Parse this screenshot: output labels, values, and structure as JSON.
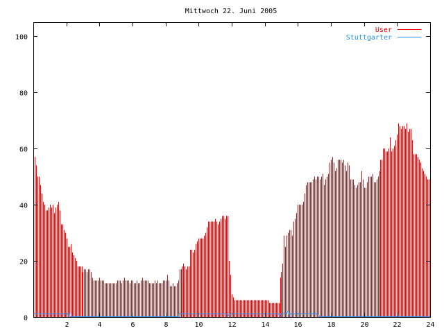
{
  "chart_data": {
    "type": "bar",
    "title": "Mittwoch 22. Juni 2005",
    "xlabel": "",
    "ylabel": "",
    "xlim": [
      0,
      24
    ],
    "ylim": [
      0,
      105
    ],
    "x_interval_hours": 0.0833333,
    "xticks": [
      "2",
      "4",
      "6",
      "8",
      "10",
      "12",
      "14",
      "16",
      "18",
      "20",
      "22",
      "24"
    ],
    "xtick_values": [
      2,
      4,
      6,
      8,
      10,
      12,
      14,
      16,
      18,
      20,
      22,
      24
    ],
    "yticks": [
      "0",
      "20",
      "40",
      "60",
      "80",
      "100"
    ],
    "ytick_values": [
      0,
      20,
      40,
      60,
      80,
      100
    ],
    "legend_position": "top-right",
    "series": [
      {
        "name": "User",
        "color": "#ff0000",
        "style": "impulses",
        "values": [
          58,
          57,
          54,
          50,
          50,
          47,
          44,
          41,
          40,
          38,
          38,
          39,
          40,
          39,
          40,
          37,
          39,
          40,
          41,
          38,
          33,
          33,
          31,
          30,
          28,
          25,
          25,
          26,
          23,
          22,
          21,
          20,
          18,
          18,
          18,
          18,
          16,
          17,
          17,
          16,
          17,
          17,
          16,
          14,
          13,
          13,
          13,
          13,
          14,
          13,
          13,
          13,
          12,
          12,
          12,
          12,
          12,
          12,
          12,
          12,
          12,
          13,
          13,
          13,
          12,
          13,
          14,
          13,
          13,
          13,
          12,
          13,
          13,
          12,
          12,
          13,
          12,
          12,
          13,
          14,
          13,
          13,
          13,
          13,
          12,
          12,
          12,
          12,
          13,
          12,
          13,
          12,
          12,
          12,
          13,
          13,
          13,
          15,
          13,
          11,
          11,
          12,
          11,
          11,
          12,
          13,
          17,
          17,
          18,
          19,
          18,
          17,
          18,
          18,
          24,
          24,
          23,
          24,
          26,
          27,
          28,
          28,
          28,
          28,
          29,
          30,
          32,
          34,
          34,
          34,
          34,
          34,
          35,
          34,
          33,
          34,
          35,
          36,
          36,
          35,
          36,
          36,
          20,
          15,
          8,
          7,
          6,
          6,
          6,
          6,
          6,
          6,
          6,
          6,
          6,
          6,
          6,
          6,
          6,
          6,
          6,
          6,
          6,
          6,
          6,
          6,
          6,
          6,
          6,
          6,
          6,
          5,
          5,
          5,
          5,
          5,
          5,
          5,
          5,
          14,
          16,
          19,
          29,
          25,
          29,
          30,
          31,
          31,
          29,
          34,
          35,
          37,
          40,
          40,
          40,
          40,
          41,
          44,
          47,
          48,
          48,
          48,
          48,
          49,
          50,
          49,
          50,
          50,
          49,
          50,
          51,
          47,
          49,
          50,
          51,
          55,
          56,
          57,
          55,
          52,
          53,
          56,
          56,
          56,
          55,
          56,
          54,
          52,
          55,
          54,
          49,
          49,
          49,
          47,
          46,
          47,
          48,
          48,
          52,
          49,
          46,
          46,
          48,
          50,
          50,
          50,
          51,
          48,
          48,
          49,
          50,
          52,
          56,
          56,
          60,
          60,
          59,
          59,
          60,
          64,
          59,
          60,
          61,
          63,
          65,
          69,
          68,
          67,
          68,
          68,
          67,
          69,
          66,
          67,
          67,
          63,
          58,
          58,
          58,
          57,
          56,
          55,
          53,
          52,
          51,
          50,
          49,
          49
        ]
      },
      {
        "name": "Stuttgarter",
        "color": "#1e8fff",
        "style": "steps",
        "points": [
          [
            0,
            1
          ],
          [
            2.2,
            1
          ],
          [
            2.2,
            0
          ],
          [
            8.8,
            0
          ],
          [
            8.8,
            1
          ],
          [
            11.7,
            1
          ],
          [
            11.75,
            0
          ],
          [
            11.85,
            1
          ],
          [
            14.85,
            1
          ],
          [
            14.9,
            0
          ],
          [
            14.95,
            1
          ],
          [
            15.3,
            1
          ],
          [
            15.35,
            2
          ],
          [
            15.4,
            2
          ],
          [
            15.45,
            0
          ],
          [
            15.5,
            1
          ],
          [
            17.25,
            1
          ],
          [
            17.3,
            0
          ],
          [
            24,
            0
          ]
        ]
      }
    ]
  }
}
